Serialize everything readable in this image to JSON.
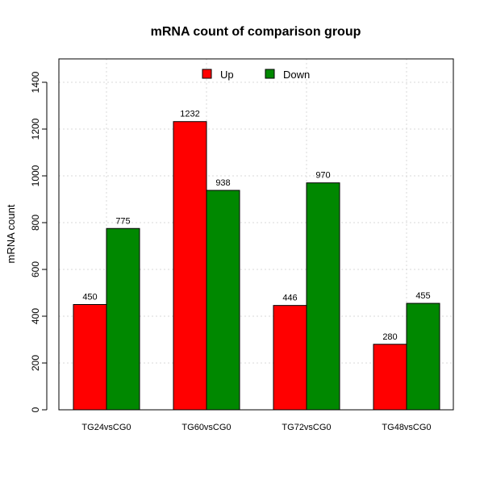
{
  "chart_data": {
    "type": "bar",
    "title": "mRNA count of comparison group",
    "xlabel": "",
    "ylabel": "mRNA count",
    "categories": [
      "TG24vsCG0",
      "TG60vsCG0",
      "TG72vsCG0",
      "TG48vsCG0"
    ],
    "series": [
      {
        "name": "Up",
        "values": [
          450,
          1232,
          446,
          280
        ],
        "color": "#ff0000"
      },
      {
        "name": "Down",
        "values": [
          775,
          938,
          970,
          455
        ],
        "color": "#008800"
      }
    ],
    "ylim": [
      0,
      1500
    ],
    "yticks": [
      0,
      200,
      400,
      600,
      800,
      1000,
      1200,
      1400
    ],
    "grid": true,
    "legend_position": "top-center"
  }
}
